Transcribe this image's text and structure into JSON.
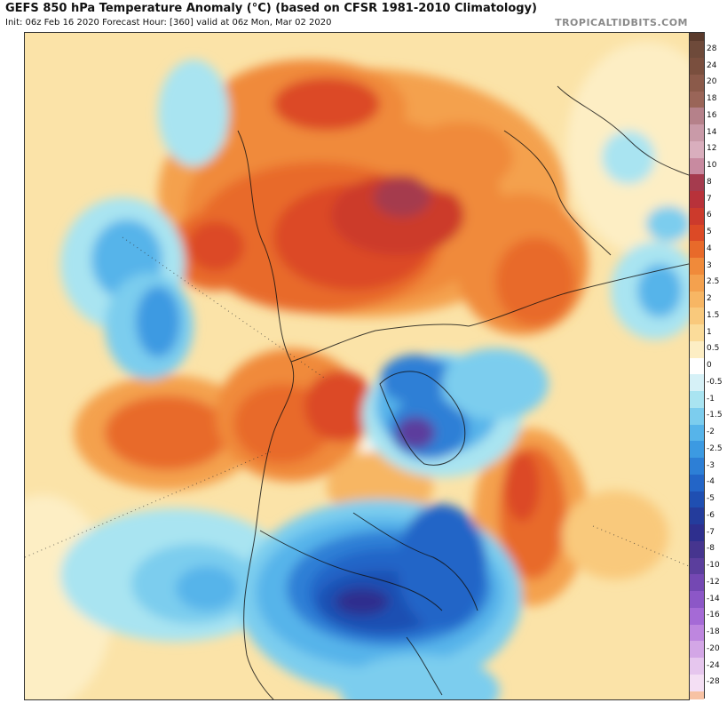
{
  "header": {
    "title": "GEFS 850 hPa Temperature Anomaly (°C) (based on CFSR 1981-2010 Climatology)",
    "subtitle": "Init: 06z Feb 16 2020   Forecast Hour: [360]   valid at 06z Mon, Mar 02 2020",
    "brand": "TROPICALTIDBITS.COM"
  },
  "colorbar": {
    "levels": [
      {
        "label": "28",
        "color": "#6e4a3a"
      },
      {
        "label": "24",
        "color": "#7a4f3e"
      },
      {
        "label": "20",
        "color": "#8b5a4a"
      },
      {
        "label": "18",
        "color": "#9a6558"
      },
      {
        "label": "16",
        "color": "#b5818a"
      },
      {
        "label": "14",
        "color": "#c99aa8"
      },
      {
        "label": "12",
        "color": "#d9aebd"
      },
      {
        "label": "10",
        "color": "#c88aa0"
      },
      {
        "label": "8",
        "color": "#a53b4e"
      },
      {
        "label": "7",
        "color": "#b8323a"
      },
      {
        "label": "6",
        "color": "#cc3a2c"
      },
      {
        "label": "5",
        "color": "#dc4a26"
      },
      {
        "label": "4",
        "color": "#e86a2a"
      },
      {
        "label": "3",
        "color": "#f08a3a"
      },
      {
        "label": "2.5",
        "color": "#f4a14e"
      },
      {
        "label": "2",
        "color": "#f7b664"
      },
      {
        "label": "1.5",
        "color": "#f9c97c"
      },
      {
        "label": "1",
        "color": "#fbdc9a"
      },
      {
        "label": "0.5",
        "color": "#fdeec4"
      },
      {
        "label": "0",
        "color": "#ffffff"
      },
      {
        "label": "-0.5",
        "color": "#d6f1f7"
      },
      {
        "label": "-1",
        "color": "#a9e4f1"
      },
      {
        "label": "-1.5",
        "color": "#7ccdee"
      },
      {
        "label": "-2",
        "color": "#56b4ea"
      },
      {
        "label": "-2.5",
        "color": "#3c9ae2"
      },
      {
        "label": "-3",
        "color": "#2d7fd6"
      },
      {
        "label": "-4",
        "color": "#2365c7"
      },
      {
        "label": "-5",
        "color": "#1f4fb2"
      },
      {
        "label": "-6",
        "color": "#243c9c"
      },
      {
        "label": "-7",
        "color": "#2e2f8e"
      },
      {
        "label": "-8",
        "color": "#46358f"
      },
      {
        "label": "-10",
        "color": "#5b3e9d"
      },
      {
        "label": "-12",
        "color": "#7448b3"
      },
      {
        "label": "-14",
        "color": "#8c57c7"
      },
      {
        "label": "-16",
        "color": "#a56ad6"
      },
      {
        "label": "-18",
        "color": "#be86df"
      },
      {
        "label": "-20",
        "color": "#d3a6e6"
      },
      {
        "label": "-24",
        "color": "#e6c6ee"
      },
      {
        "label": "-28",
        "color": "#f4dff4"
      }
    ],
    "extremes": {
      "top": "#5a3a2c",
      "bottom": "#f7c2a4"
    }
  }
}
